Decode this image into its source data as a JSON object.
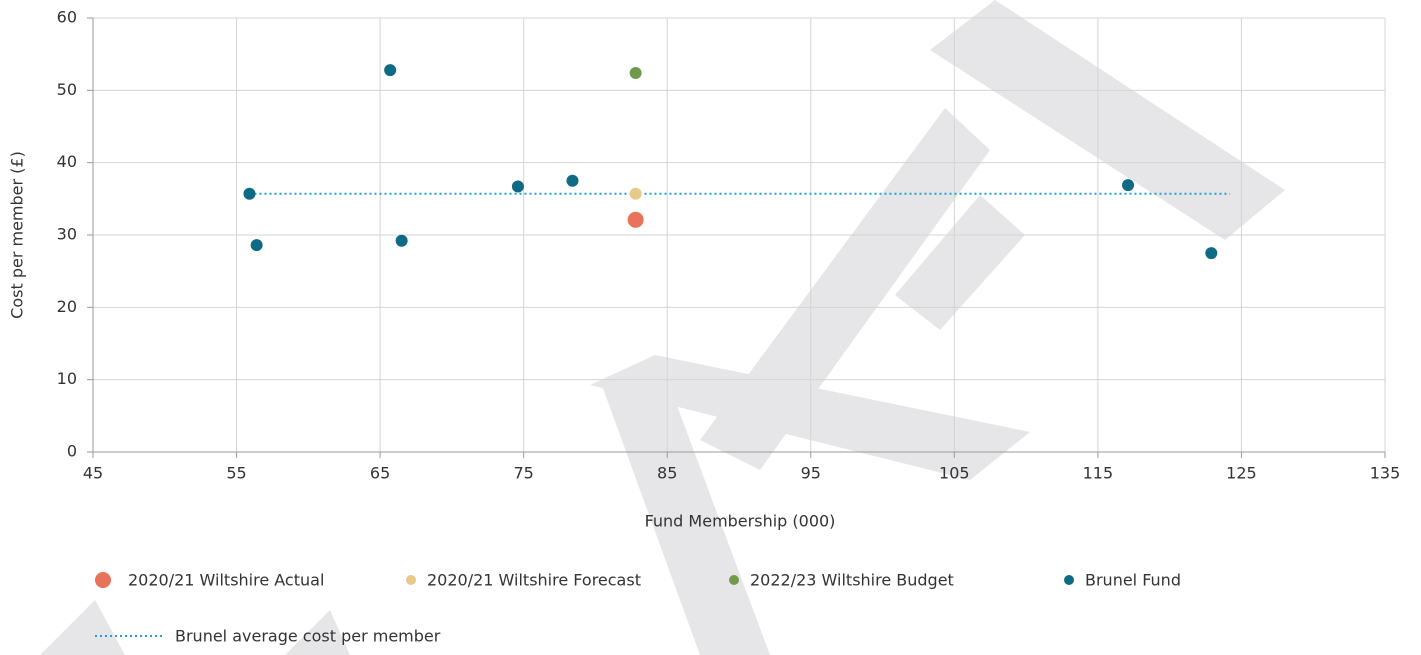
{
  "chart_data": {
    "type": "scatter",
    "x_label": "Fund Membership (000)",
    "y_label": "Cost per member (£)",
    "xlim": [
      45,
      135
    ],
    "xticks": [
      45,
      55,
      65,
      75,
      85,
      95,
      105,
      115,
      125,
      135
    ],
    "ylim": [
      0,
      60
    ],
    "yticks": [
      0,
      10,
      20,
      30,
      40,
      50,
      60
    ],
    "grid": true,
    "series": [
      {
        "name": "2020/21 Wiltshire Actual",
        "color": "#e8735a",
        "x": [
          82.8
        ],
        "values": [
          32.1
        ]
      },
      {
        "name": "2020/21 Wiltshire Forecast",
        "color": "#e8c98a",
        "x": [
          82.8
        ],
        "values": [
          35.7
        ]
      },
      {
        "name": "2022/23 Wiltshire Budget",
        "color": "#6f9a4b",
        "x": [
          82.8
        ],
        "values": [
          52.4
        ]
      },
      {
        "name": "Brunel Fund",
        "color": "#0f6a86",
        "x": [
          55.9,
          56.4,
          65.7,
          66.5,
          74.6,
          78.4,
          117.1,
          122.9
        ],
        "values": [
          35.7,
          28.6,
          52.8,
          29.2,
          36.7,
          37.5,
          36.9,
          27.5
        ]
      }
    ],
    "reference_line": {
      "name": "Brunel average cost per member",
      "color": "#1ea3d0",
      "x": [
        55.9,
        124.2
      ],
      "values": [
        35.7,
        35.7
      ]
    }
  }
}
